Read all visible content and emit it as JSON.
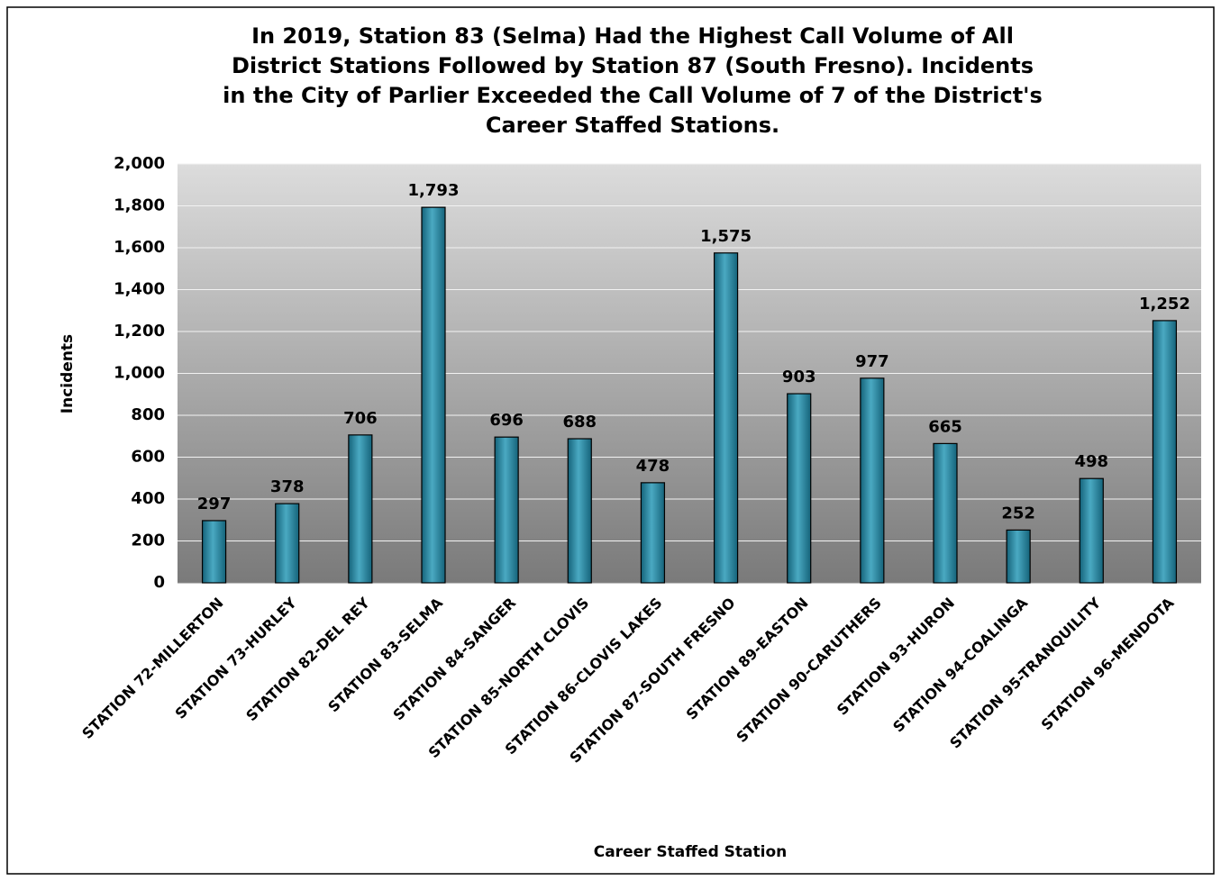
{
  "chart_data": {
    "type": "bar",
    "title": [
      "In 2019, Station 83 (Selma) Had the Highest Call Volume of All",
      "District Stations Followed by Station 87 (South Fresno).  Incidents",
      "in the City of Parlier Exceeded the Call Volume of 7 of the District's",
      "Career Staffed Stations."
    ],
    "x_label": "Career Staffed Station",
    "y_label": "Incidents",
    "categories": [
      "STATION 72-MILLERTON",
      "STATION 73-HURLEY",
      "STATION 82-DEL REY",
      "STATION 83-SELMA",
      "STATION 84-SANGER",
      "STATION 85-NORTH CLOVIS",
      "STATION 86-CLOVIS LAKES",
      "STATION 87-SOUTH FRESNO",
      "STATION 89-EASTON",
      "STATION 90-CARUTHERS",
      "STATION 93-HURON",
      "STATION 94-COALINGA",
      "STATION 95-TRANQUILITY",
      "STATION 96-MENDOTA"
    ],
    "values": [
      297,
      378,
      706,
      1793,
      696,
      688,
      478,
      1575,
      903,
      977,
      665,
      252,
      498,
      1252
    ],
    "value_labels": [
      "297",
      "378",
      "706",
      "1,793",
      "696",
      "688",
      "478",
      "1,575",
      "903",
      "977",
      "665",
      "252",
      "498",
      "1,252"
    ],
    "color": "#2a8aa3",
    "ylim": [
      0,
      2000
    ],
    "yticks": [
      0,
      200,
      400,
      600,
      800,
      {
        "value": 1000,
        "label": "1,000"
      },
      {
        "value": 1200,
        "label": "1,200"
      },
      {
        "value": 1400,
        "label": "1,400"
      },
      {
        "value": 1600,
        "label": "1,600"
      },
      {
        "value": 1800,
        "label": "1,800"
      },
      {
        "value": 2000,
        "label": "2,000"
      }
    ],
    "grid": true
  }
}
